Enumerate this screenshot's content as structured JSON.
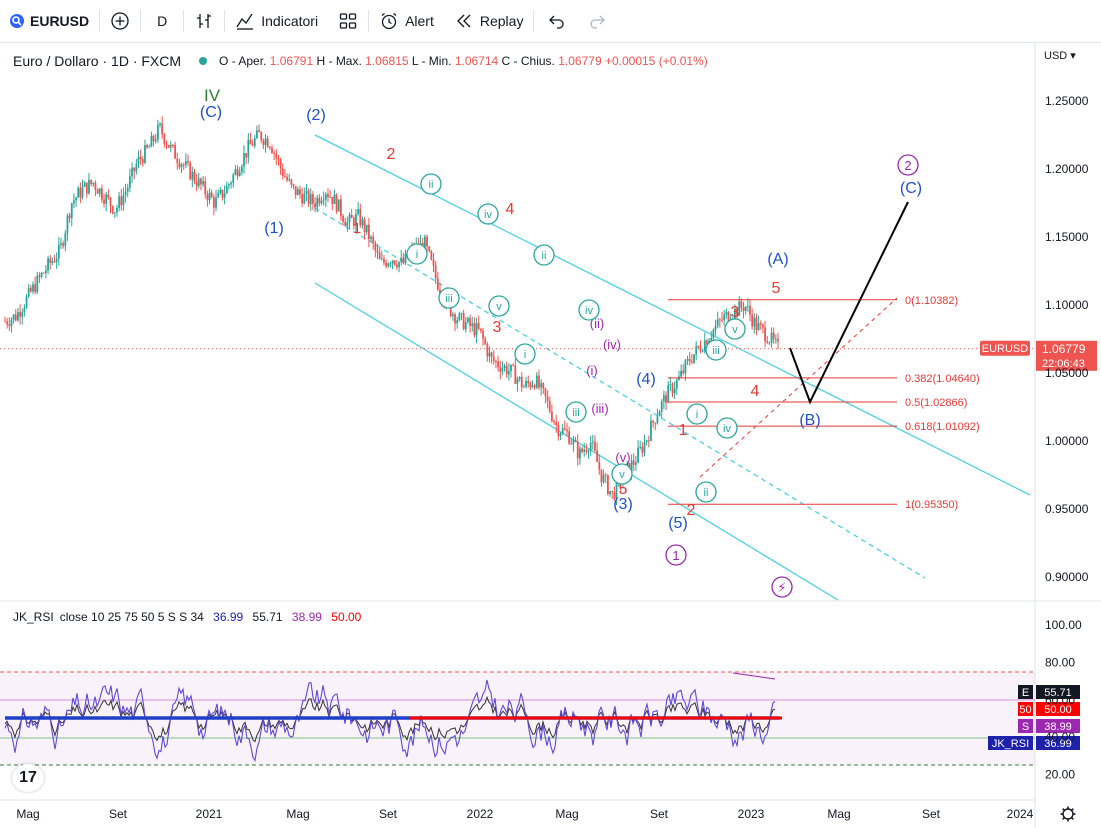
{
  "toolbar": {
    "symbol": "EURUSD",
    "interval": "D",
    "indicators_label": "Indicatori",
    "alert_label": "Alert",
    "replay_label": "Replay"
  },
  "legend": {
    "title": "Euro / Dollaro · 1D · FXCM",
    "open_label": "O - Aper.",
    "open": "1.06791",
    "high_label": "H - Max.",
    "high": "1.06815",
    "low_label": "L - Min.",
    "low": "1.06714",
    "close_label": "C - Chius.",
    "close": "1.06779",
    "change": "+0.00015 (+0.01%)"
  },
  "currency": "USD",
  "price_tag": {
    "symbol": "EURUSD",
    "price": "1.06779",
    "countdown": "22:06:43"
  },
  "rsi_legend": {
    "name": "JK_RSI",
    "params": "close 10 25 75 50 5 S S 34",
    "v1": "36.99",
    "v2": "55.71",
    "v3": "38.99",
    "v4": "50.00"
  },
  "rsi_tags": [
    {
      "letter": "E",
      "value": "55.71",
      "color": "#131722"
    },
    {
      "letter": "50",
      "value": "50.00",
      "color": "#ff0000"
    },
    {
      "letter": "S",
      "value": "38.99",
      "color": "#9c27b0"
    },
    {
      "letter": "JK_RSI",
      "value": "36.99",
      "color": "#1e22aa"
    }
  ],
  "colors": {
    "up": "#26a69a",
    "down": "#ef5350",
    "channel": "#4dd0e1",
    "wave_blue": "#1e50c8",
    "wave_red": "#e53935",
    "wave_green": "#2e7d32",
    "wave_purple": "#9c27b0",
    "fib": "#e53935",
    "rsi": "#5c4bd6"
  },
  "chart_data": {
    "type": "line",
    "title": "Euro / Dollaro · 1D · FXCM",
    "y_axis": {
      "min": 0.88,
      "max": 1.27,
      "ticks": [
        1.25,
        1.2,
        1.15,
        1.1,
        1.05,
        1.0,
        0.95,
        0.9
      ]
    },
    "x_labels": [
      "Mag",
      "Set",
      "2021",
      "Mag",
      "Set",
      "2022",
      "Mag",
      "Set",
      "2023",
      "Mag",
      "Set",
      "2024"
    ],
    "series": [
      {
        "values": [
          1.088,
          1.092,
          1.105,
          1.118,
          1.13,
          1.14,
          1.175,
          1.185,
          1.19,
          1.18,
          1.17,
          1.185,
          1.205,
          1.215,
          1.23,
          1.215,
          1.205,
          1.195,
          1.185,
          1.175,
          1.185,
          1.2,
          1.215,
          1.225,
          1.22,
          1.2,
          1.185,
          1.18,
          1.175,
          1.185,
          1.175,
          1.16,
          1.165,
          1.15,
          1.13,
          1.135,
          1.13,
          1.14,
          1.145,
          1.12,
          1.1,
          1.09,
          1.085,
          1.08,
          1.06,
          1.055,
          1.05,
          1.04,
          1.045,
          1.03,
          1.01,
          1.005,
          0.99,
          1.0,
          0.975,
          0.96,
          0.975,
          0.985,
          1.0,
          1.02,
          1.035,
          1.045,
          1.06,
          1.07,
          1.08,
          1.09,
          1.095,
          1.1,
          1.085,
          1.078,
          1.068
        ]
      }
    ],
    "fib_levels": [
      {
        "label": "0(1.10382)",
        "price": 1.10382
      },
      {
        "label": "0.382(1.04640)",
        "price": 1.0464
      },
      {
        "label": "0.5(1.02866)",
        "price": 1.02866
      },
      {
        "label": "0.618(1.01092)",
        "price": 1.01092
      },
      {
        "label": "1(0.95350)",
        "price": 0.9535
      }
    ],
    "wave_labels": [
      "IV",
      "(C)",
      "(2)",
      "(1)",
      "2",
      "1",
      "ii",
      "iv",
      "4",
      "i",
      "ii",
      "iii",
      "v",
      "3",
      "i",
      "iv",
      "(ii)",
      "(iv)",
      "(i)",
      "iii",
      "(iii)",
      "(4)",
      "(v)",
      "v",
      "5",
      "(3)",
      "(5)",
      "1",
      "2",
      "i",
      "ii",
      "iii",
      "iv",
      "v",
      "3",
      "4",
      "5",
      "(A)",
      "(B)",
      "(C)",
      "2"
    ],
    "rsi": {
      "ylim": [
        15,
        100
      ],
      "ticks": [
        100.0,
        80.0,
        60.0,
        40.0,
        20.0
      ]
    }
  }
}
